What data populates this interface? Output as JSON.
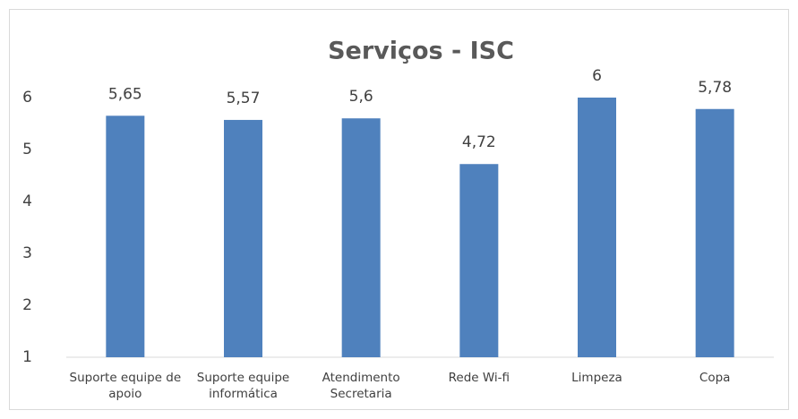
{
  "chart_data": {
    "type": "bar",
    "title": "Serviços - ISC",
    "categories": [
      "Suporte equipe de apoio",
      "Suporte equipe informática",
      "Atendimento Secretaria",
      "Rede Wi-fi",
      "Limpeza",
      "Copa"
    ],
    "values": [
      5.65,
      5.57,
      5.6,
      4.72,
      6,
      5.78
    ],
    "value_labels": [
      "5,65",
      "5,57",
      "5,6",
      "4,72",
      "6",
      "5,78"
    ],
    "color": "#4f81bd",
    "ylim": [
      1,
      6
    ],
    "yticks": [
      1,
      2,
      3,
      4,
      5,
      6
    ],
    "grid": false
  }
}
